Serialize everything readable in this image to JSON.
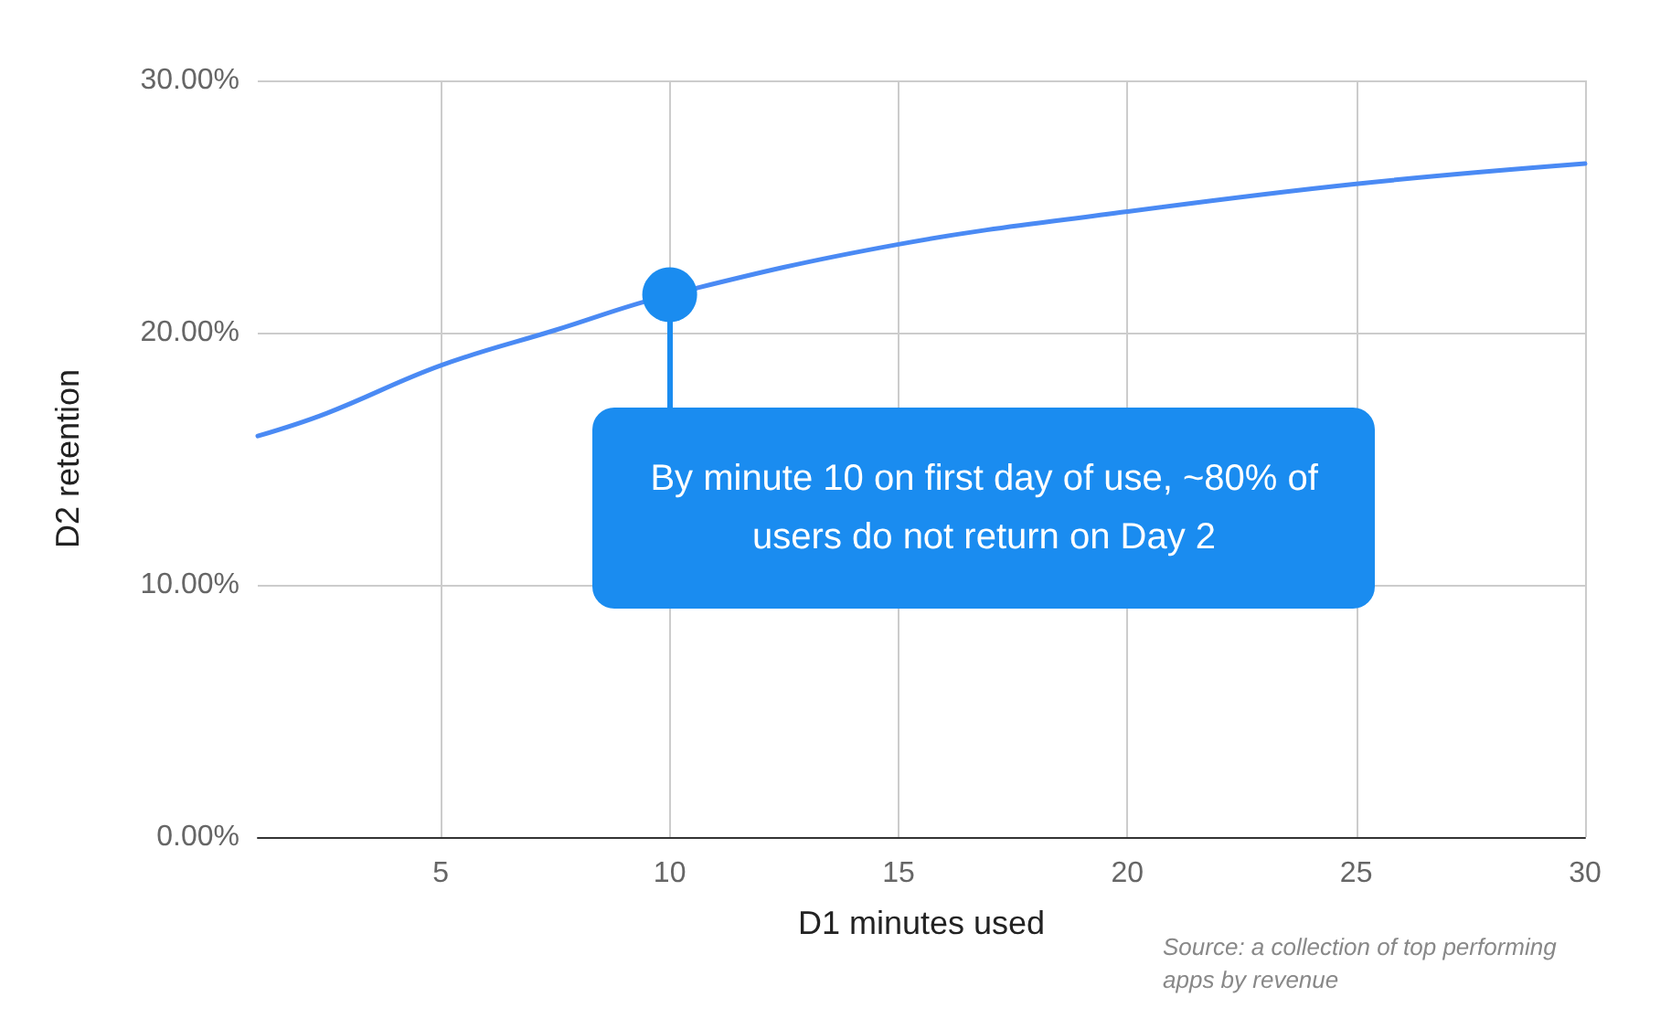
{
  "chart_data": {
    "type": "line",
    "xlabel": "D1 minutes used",
    "ylabel": "D2 retention",
    "x": [
      1,
      2.5,
      5,
      7.5,
      10,
      15,
      20,
      25,
      30
    ],
    "series": [
      {
        "color": "#4a8af4",
        "values": [
          15.9,
          16.8,
          18.7,
          20.1,
          21.5,
          23.5,
          24.8,
          25.9,
          26.7
        ]
      },
      {
        "type": "scatter",
        "marker": "circle",
        "color": "#1a8cf0",
        "x": [
          10
        ],
        "values": [
          21.5
        ]
      }
    ],
    "xlim": [
      1,
      30
    ],
    "xticks": [
      5,
      10,
      15,
      20,
      25,
      30
    ],
    "ylim": [
      0,
      30
    ],
    "yticks": [
      {
        "value": 0,
        "label": "0.00%"
      },
      {
        "value": 10,
        "label": "10.00%"
      },
      {
        "value": 20,
        "label": "20.00%"
      },
      {
        "value": 30,
        "label": "30.00%"
      }
    ],
    "grid": true,
    "marker": "none",
    "annotations": [
      "By minute 10 on first day of use, ~80% of users do not return on Day 2",
      "Source: a collection of top performing apps by revenue"
    ]
  }
}
